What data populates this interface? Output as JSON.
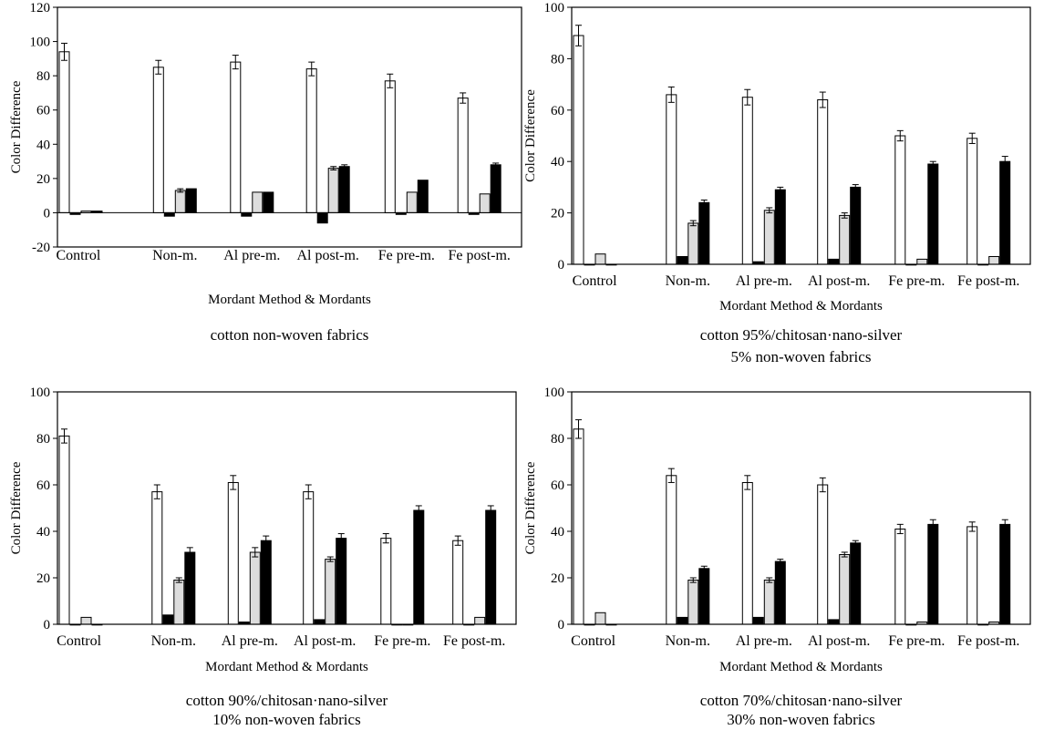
{
  "chart_data": [
    {
      "type": "bar",
      "title": "cotton non-woven fabrics",
      "xlabel": "Mordant Method & Mordants",
      "ylabel": "Color Difference",
      "ylim": [
        -20,
        120
      ],
      "yticks": [
        -20,
        0,
        20,
        40,
        60,
        80,
        100,
        120
      ],
      "grid": false,
      "categories": [
        "Control",
        "Non-m.",
        "Al pre-m.",
        "Al post-m.",
        "Fe pre-m.",
        "Fe post-m."
      ],
      "series": [
        {
          "color": "#ffffff",
          "values": [
            94,
            85,
            88,
            84,
            77,
            67
          ],
          "errors": [
            5,
            4,
            4,
            4,
            4,
            3
          ]
        },
        {
          "color": "#000000",
          "values": [
            -1,
            -2,
            -2,
            -6,
            -1,
            -1
          ],
          "errors": [
            0,
            0,
            0,
            0,
            0,
            0
          ]
        },
        {
          "color": "#dddddd",
          "values": [
            1,
            13,
            12,
            26,
            12,
            11
          ],
          "errors": [
            0,
            1,
            0,
            1,
            0,
            0
          ]
        },
        {
          "color": "#000000",
          "values": [
            1,
            14,
            12,
            27,
            19,
            28
          ],
          "errors": [
            0,
            0,
            0,
            1,
            0,
            1
          ]
        }
      ]
    },
    {
      "type": "bar",
      "title": "cotton 95%/chitosan·nano-silver",
      "title2": "5% non-woven fabrics",
      "xlabel": "Mordant Method & Mordants",
      "ylabel": "Color Difference",
      "ylim": [
        0,
        100
      ],
      "yticks": [
        0,
        20,
        40,
        60,
        80,
        100
      ],
      "grid": false,
      "categories": [
        "Control",
        "Non-m.",
        "Al pre-m.",
        "Al post-m.",
        "Fe pre-m.",
        "Fe post-m."
      ],
      "series": [
        {
          "color": "#ffffff",
          "values": [
            89,
            66,
            65,
            64,
            50,
            49
          ],
          "errors": [
            4,
            3,
            3,
            3,
            2,
            2
          ]
        },
        {
          "color": "#000000",
          "values": [
            0,
            3,
            1,
            2,
            0,
            0
          ],
          "errors": [
            0,
            0,
            0,
            0,
            0,
            0
          ]
        },
        {
          "color": "#dddddd",
          "values": [
            4,
            16,
            21,
            19,
            2,
            3
          ],
          "errors": [
            0,
            1,
            1,
            1,
            0,
            0
          ]
        },
        {
          "color": "#000000",
          "values": [
            0,
            24,
            29,
            30,
            39,
            40
          ],
          "errors": [
            0,
            1,
            1,
            1,
            1,
            2
          ]
        }
      ]
    },
    {
      "type": "bar",
      "title": "cotton 90%/chitosan·nano-silver",
      "title2": "10% non-woven fabrics",
      "xlabel": "Mordant Method & Mordants",
      "ylabel": "Color Difference",
      "ylim": [
        0,
        100
      ],
      "yticks": [
        0,
        20,
        40,
        60,
        80,
        100
      ],
      "grid": false,
      "categories": [
        "Control",
        "Non-m.",
        "Al pre-m.",
        "Al post-m.",
        "Fe pre-m.",
        "Fe post-m."
      ],
      "series": [
        {
          "color": "#ffffff",
          "values": [
            81,
            57,
            61,
            57,
            37,
            36
          ],
          "errors": [
            3,
            3,
            3,
            3,
            2,
            2
          ]
        },
        {
          "color": "#000000",
          "values": [
            0,
            4,
            1,
            2,
            0,
            0
          ],
          "errors": [
            0,
            0,
            0,
            0,
            0,
            0
          ]
        },
        {
          "color": "#dddddd",
          "values": [
            3,
            19,
            31,
            28,
            0,
            3
          ],
          "errors": [
            0,
            1,
            2,
            1,
            0,
            0
          ]
        },
        {
          "color": "#000000",
          "values": [
            0,
            31,
            36,
            37,
            49,
            49
          ],
          "errors": [
            0,
            2,
            2,
            2,
            2,
            2
          ]
        }
      ]
    },
    {
      "type": "bar",
      "title": "cotton 70%/chitosan·nano-silver",
      "title2": "30% non-woven fabrics",
      "xlabel": "Mordant Method & Mordants",
      "ylabel": "Color Difference",
      "ylim": [
        0,
        100
      ],
      "yticks": [
        0,
        20,
        40,
        60,
        80,
        100
      ],
      "grid": false,
      "categories": [
        "Control",
        "Non-m.",
        "Al pre-m.",
        "Al post-m.",
        "Fe pre-m.",
        "Fe post-m."
      ],
      "series": [
        {
          "color": "#ffffff",
          "values": [
            84,
            64,
            61,
            60,
            41,
            42
          ],
          "errors": [
            4,
            3,
            3,
            3,
            2,
            2
          ]
        },
        {
          "color": "#000000",
          "values": [
            0,
            3,
            3,
            2,
            0,
            0
          ],
          "errors": [
            0,
            0,
            0,
            0,
            0,
            0
          ]
        },
        {
          "color": "#dddddd",
          "values": [
            5,
            19,
            19,
            30,
            1,
            1
          ],
          "errors": [
            0,
            1,
            1,
            1,
            0,
            0
          ]
        },
        {
          "color": "#000000",
          "values": [
            0,
            24,
            27,
            35,
            43,
            43
          ],
          "errors": [
            0,
            1,
            1,
            1,
            2,
            2
          ]
        }
      ]
    }
  ]
}
